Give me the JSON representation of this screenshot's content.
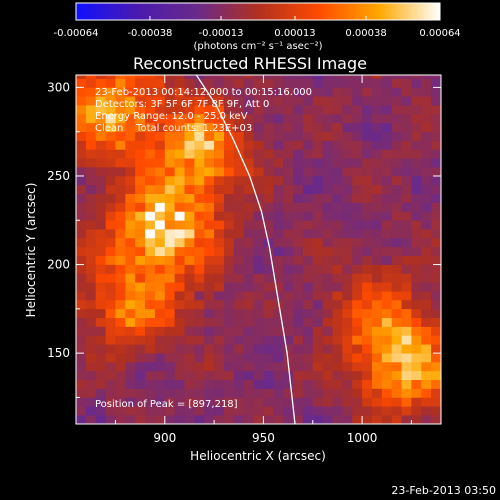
{
  "colorbar": {
    "tick_labels": [
      "-0.00064",
      "-0.00038",
      "-0.00013",
      "0.00013",
      "0.00038",
      "0.00064"
    ],
    "tick_values": [
      -0.00064,
      -0.00038,
      -0.00013,
      0.00013,
      0.00038,
      0.00064
    ],
    "range": [
      -0.00064,
      0.00064
    ],
    "unit_label": "(photons cm⁻² s⁻¹ asec⁻²)",
    "colors": [
      "#1010ff",
      "#4a1ab0",
      "#6a2a8a",
      "#b03020",
      "#ff4a00",
      "#ffa800",
      "#ffffff"
    ]
  },
  "chart_data": {
    "type": "heatmap",
    "title": "Reconstructed RHESSI Image",
    "xlabel": "Heliocentric X (arcsec)",
    "ylabel": "Heliocentric Y (arcsec)",
    "xlim": [
      855,
      1040
    ],
    "ylim": [
      110,
      307
    ],
    "x_ticks": [
      900,
      950,
      1000
    ],
    "y_ticks": [
      150,
      200,
      250,
      300
    ],
    "limb_curve": [
      [
        916,
        307
      ],
      [
        926,
        290
      ],
      [
        935,
        270
      ],
      [
        943,
        250
      ],
      [
        949,
        230
      ],
      [
        953,
        210
      ],
      [
        956,
        190
      ],
      [
        959,
        170
      ],
      [
        962,
        150
      ],
      [
        964,
        130
      ],
      [
        966,
        110
      ]
    ],
    "bright_regions": [
      {
        "x": 897,
        "y": 218,
        "intensity": 0.00064
      },
      {
        "x": 915,
        "y": 262,
        "intensity": 0.0005
      },
      {
        "x": 870,
        "y": 285,
        "intensity": 0.0005
      },
      {
        "x": 1020,
        "y": 140,
        "intensity": 0.0006
      },
      {
        "x": 880,
        "y": 175,
        "intensity": 0.0004
      },
      {
        "x": 1005,
        "y": 170,
        "intensity": 0.0003
      }
    ],
    "annotations": [
      "23-Feb-2013 00:14:12.000 to 00:15:16.000",
      "Detectors: 3F 5F 6F 7F 8F 9F, Att 0",
      "Energy Range: 12.0 - 25.0 keV",
      "Clean    Total counts: 1.23E+03"
    ],
    "peak_label": "Position of Peak = [897,218]",
    "grid": false
  },
  "footer": {
    "timestamp": "23-Feb-2013 03:50"
  }
}
